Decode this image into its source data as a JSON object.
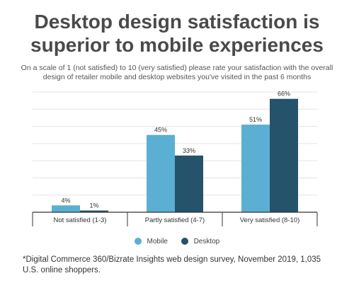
{
  "title": "Desktop design satisfaction is superior to mobile experiences",
  "subtitle": "On a scale of 1 (not satisfied) to 10 (very satisfied) please rate your satisfaction with the overall design of retailer mobile and desktop websites you've visited in the past 6 months",
  "footnote": "*Digital Commerce 360/Bizrate Insights web design survey, November 2019, 1,035 U.S. online shoppers.",
  "colors": {
    "mobile": "#5aafd3",
    "desktop": "#24536b",
    "grid": "#e3e3e3",
    "axis": "#333333"
  },
  "chart_data": {
    "type": "bar",
    "categories": [
      "Not satisfied (1-3)",
      "Partly satisfied (4-7)",
      "Very satisfied (8-10)"
    ],
    "series": [
      {
        "name": "Mobile",
        "values": [
          4,
          45,
          51
        ],
        "labels": [
          "4%",
          "45%",
          "51%"
        ]
      },
      {
        "name": "Desktop",
        "values": [
          1,
          33,
          66
        ],
        "labels": [
          "1%",
          "33%",
          "66%"
        ]
      }
    ],
    "ylim": [
      0,
      70
    ],
    "grid": true,
    "legend_position": "bottom-center"
  }
}
